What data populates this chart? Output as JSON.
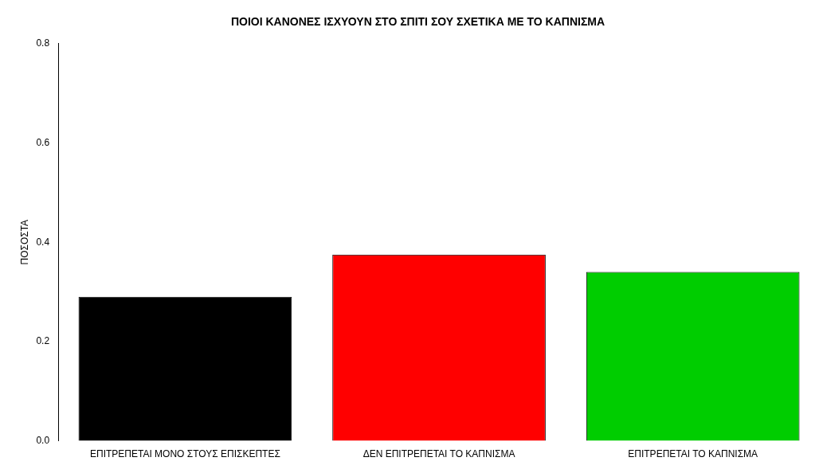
{
  "chart_data": {
    "type": "bar",
    "title": "ΠΟΙΟΙ ΚΑΝΟΝΕΣ ΙΣΧΥΟΥΝ ΣΤΟ ΣΠΙΤΙ ΣΟΥ ΣΧΕΤΙΚΑ ΜΕ ΤΟ ΚΑΠΝΙΣΜΑ",
    "ylabel": "ΠΟΣΟΣΤΑ",
    "categories": [
      "ΕΠΙΤΡΕΠΕΤΑΙ ΜΟΝΟ ΣΤΟΥΣ ΕΠΙΣΚΕΠΤΕΣ",
      "ΔΕΝ ΕΠΙΤΡΕΠΕΤΑΙ ΤΟ ΚΑΠΝΙΣΜΑ",
      "ΕΠΙΤΡΕΠΕΤΑΙ ΤΟ ΚΑΠΝΙΣΜΑ"
    ],
    "values": [
      0.29,
      0.375,
      0.34
    ],
    "colors": [
      "#000000",
      "#ff0000",
      "#00cd00"
    ],
    "ylim": [
      0,
      0.8
    ],
    "yticks": [
      {
        "value": 0,
        "label": "0.0"
      },
      {
        "value": 0.2,
        "label": "0.2"
      },
      {
        "value": 0.4,
        "label": "0.4"
      },
      {
        "value": 0.6,
        "label": "0.6"
      },
      {
        "value": 0.8,
        "label": "0.8"
      }
    ],
    "grid": false,
    "legend": false
  }
}
